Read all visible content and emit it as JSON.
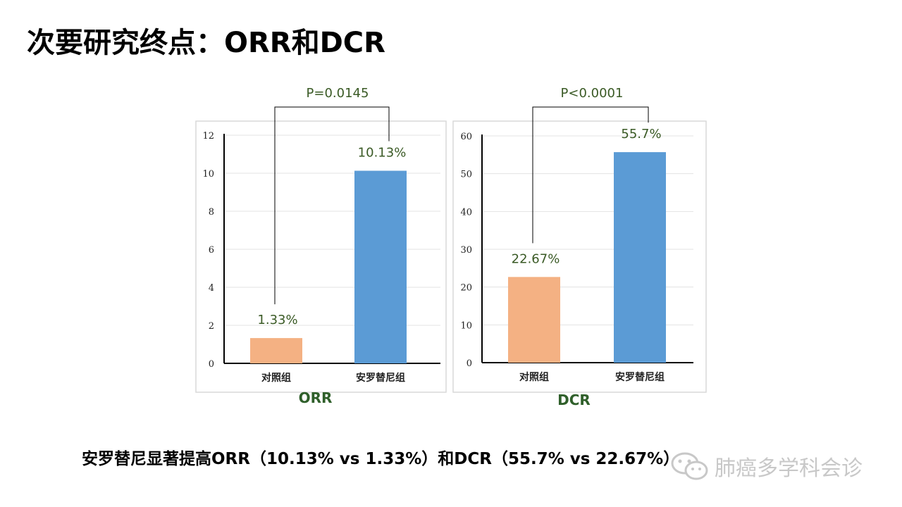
{
  "page": {
    "title": "次要研究终点：ORR和DCR",
    "conclusion": "安罗替尼显著提高ORR（10.13% vs 1.33%）和DCR（55.7% vs 22.67%）",
    "watermark": "肺癌多学科会诊"
  },
  "colors": {
    "control": "#F4B183",
    "treatment": "#5B9BD5",
    "value_label": "#3A5A25",
    "axis_title": "#2F5F2A"
  },
  "chart_data": [
    {
      "type": "bar",
      "categories": [
        "对照组",
        "安罗替尼组"
      ],
      "values": [
        1.33,
        10.13
      ],
      "value_labels": [
        "1.33%",
        "10.13%"
      ],
      "ylim": [
        0,
        12
      ],
      "yticks": [
        0,
        2,
        4,
        6,
        8,
        10,
        12
      ],
      "xlabel": "ORR",
      "significance": "P=0.0145",
      "grid": true,
      "legend": "none"
    },
    {
      "type": "bar",
      "categories": [
        "对照组",
        "安罗替尼组"
      ],
      "values": [
        22.67,
        55.7
      ],
      "value_labels": [
        "22.67%",
        "55.7%"
      ],
      "ylim": [
        0,
        60
      ],
      "yticks": [
        0,
        10,
        20,
        30,
        40,
        50,
        60
      ],
      "xlabel": "DCR",
      "significance": "P<0.0001",
      "grid": true,
      "legend": "none"
    }
  ]
}
